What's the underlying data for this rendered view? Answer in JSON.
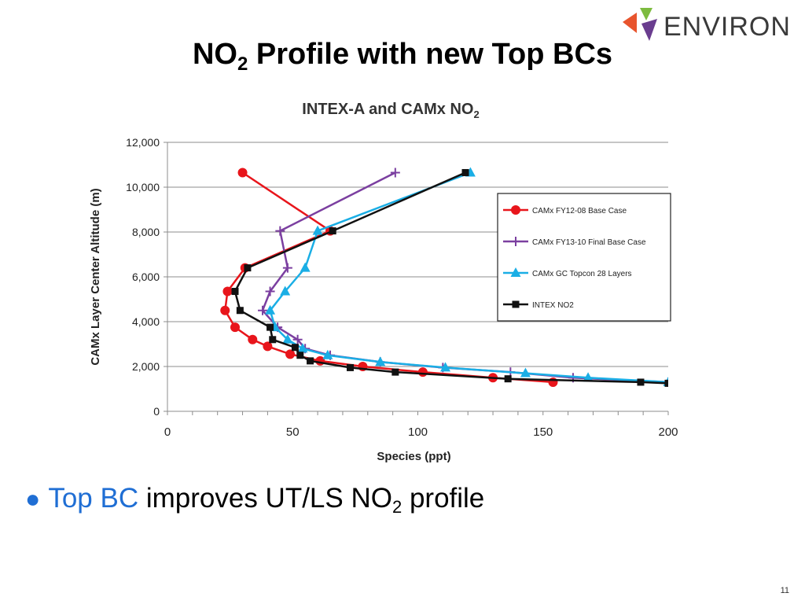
{
  "logo": {
    "text": "ENVIRON",
    "colors": [
      "#e8542d",
      "#7dbb3f",
      "#6a3d8f"
    ]
  },
  "slide": {
    "title_prefix": "NO",
    "title_sub": "2",
    "title_suffix": " Profile with new Top BCs",
    "bullet": {
      "accent_text": "Top BC",
      "text_mid": " improves UT/LS NO",
      "text_sub": "2",
      "text_end": " profile"
    },
    "page_number": "11"
  },
  "chart_data": {
    "type": "line",
    "title_prefix": "INTEX-A and CAMx NO",
    "title_sub": "2",
    "xlabel": "Species (ppt)",
    "ylabel": "CAMx Layer Center Altitude (m)",
    "xlim": [
      0,
      200
    ],
    "ylim": [
      0,
      12000
    ],
    "xticks": [
      0,
      50,
      100,
      150,
      200
    ],
    "xtick_labels": [
      "0",
      "50",
      "100",
      "150",
      "200"
    ],
    "yticks": [
      0,
      2000,
      4000,
      6000,
      8000,
      10000,
      12000
    ],
    "ytick_labels": [
      "0",
      "2,000",
      "4,000",
      "6,000",
      "8,000",
      "10,000",
      "12,000"
    ],
    "grid": "horizontal",
    "legend_position": "right",
    "series": [
      {
        "name": "CAMx FY12-08 Base Case",
        "color": "#e8151b",
        "marker": "circle",
        "points": [
          [
            30,
            10650
          ],
          [
            65,
            8050
          ],
          [
            31,
            6400
          ],
          [
            24,
            5350
          ],
          [
            23,
            4500
          ],
          [
            27,
            3750
          ],
          [
            34,
            3200
          ],
          [
            40,
            2900
          ],
          [
            49,
            2550
          ],
          [
            61,
            2250
          ],
          [
            78,
            2000
          ],
          [
            102,
            1750
          ],
          [
            130,
            1500
          ],
          [
            154,
            1300
          ]
        ]
      },
      {
        "name": "CAMx FY13-10 Final Base Case",
        "color": "#7b3fa0",
        "marker": "plus",
        "points": [
          [
            91,
            10650
          ],
          [
            45,
            8050
          ],
          [
            48,
            6400
          ],
          [
            41,
            5350
          ],
          [
            38,
            4500
          ],
          [
            44,
            3750
          ],
          [
            52,
            3200
          ],
          [
            55,
            2800
          ],
          [
            65,
            2500
          ],
          [
            85,
            2200
          ],
          [
            110,
            1950
          ],
          [
            137,
            1750
          ],
          [
            162,
            1500
          ],
          [
            200,
            1300
          ]
        ]
      },
      {
        "name": "CAMx GC Topcon 28 Layers",
        "color": "#1aaee5",
        "marker": "triangle",
        "points": [
          [
            121,
            10650
          ],
          [
            60,
            8050
          ],
          [
            55,
            6400
          ],
          [
            47,
            5350
          ],
          [
            41,
            4500
          ],
          [
            43,
            3750
          ],
          [
            48,
            3200
          ],
          [
            54,
            2800
          ],
          [
            64,
            2500
          ],
          [
            85,
            2200
          ],
          [
            111,
            1950
          ],
          [
            143,
            1700
          ],
          [
            168,
            1500
          ],
          [
            200,
            1300
          ]
        ]
      },
      {
        "name": "INTEX NO2",
        "color": "#111111",
        "marker": "square",
        "points": [
          [
            119,
            10650
          ],
          [
            66,
            8050
          ],
          [
            32,
            6400
          ],
          [
            27,
            5350
          ],
          [
            29,
            4500
          ],
          [
            41,
            3750
          ],
          [
            42,
            3200
          ],
          [
            51,
            2850
          ],
          [
            53,
            2500
          ],
          [
            57,
            2250
          ],
          [
            73,
            1950
          ],
          [
            91,
            1750
          ],
          [
            136,
            1450
          ],
          [
            189,
            1300
          ],
          [
            200,
            1250
          ]
        ]
      }
    ]
  }
}
